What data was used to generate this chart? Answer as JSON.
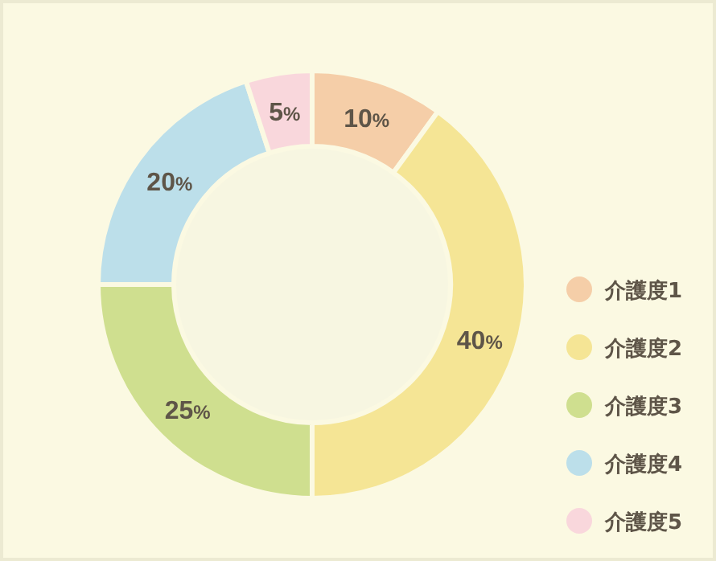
{
  "chart_data": {
    "type": "donut",
    "categories": [
      "介護度1",
      "介護度2",
      "介護度3",
      "介護度4",
      "介護度5"
    ],
    "values": [
      10,
      40,
      25,
      20,
      5
    ],
    "colors": [
      "#f5cea8",
      "#f5e595",
      "#cfdf8f",
      "#bcdfea",
      "#f9d7dc"
    ],
    "value_labels": [
      "10%",
      "40%",
      "25%",
      "20%",
      "5%"
    ],
    "legend": "right"
  }
}
